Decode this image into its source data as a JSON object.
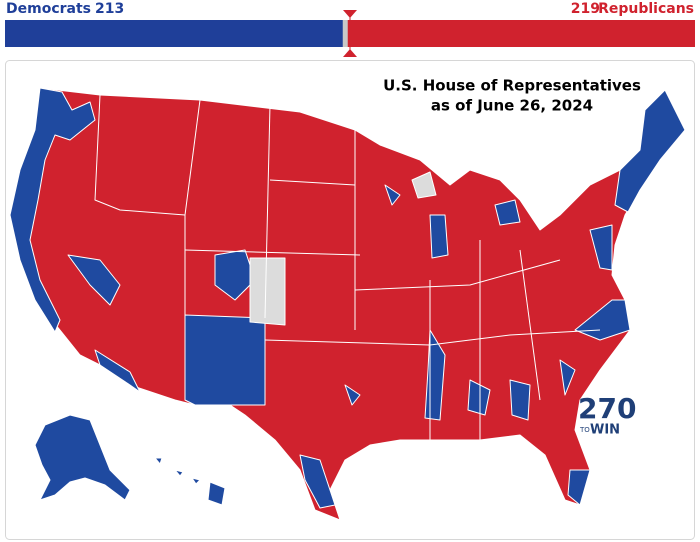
{
  "header": {
    "democrats": {
      "label": "Democrats",
      "seats": 213
    },
    "republicans": {
      "label": "Republicans",
      "seats": 219
    }
  },
  "map": {
    "title": [
      "U.S. House of Representatives",
      "as of June 26, 2024"
    ],
    "logo": {
      "number": "270",
      "small": "TO",
      "word": "WIN"
    }
  }
}
